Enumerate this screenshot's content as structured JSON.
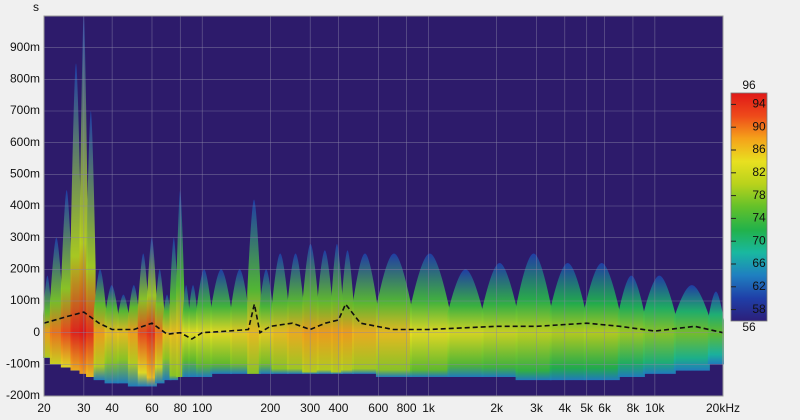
{
  "chart_data": {
    "type": "spectrogram",
    "y_label": "s",
    "xscale": "log",
    "xlim": [
      20,
      20000
    ],
    "xticks": [
      20,
      30,
      40,
      60,
      80,
      100,
      200,
      300,
      400,
      600,
      800,
      {
        "value": 1000,
        "label": "1k"
      },
      {
        "value": 2000,
        "label": "2k"
      },
      {
        "value": 3000,
        "label": "3k"
      },
      {
        "value": 4000,
        "label": "4k"
      },
      {
        "value": 5000,
        "label": "5k"
      },
      {
        "value": 6000,
        "label": "6k"
      },
      {
        "value": 8000,
        "label": "8k"
      },
      {
        "value": 10000,
        "label": "10k"
      },
      {
        "value": 20000,
        "label": "20kHz"
      }
    ],
    "ylim": [
      -0.2,
      1.0
    ],
    "yticks": [
      {
        "value": -0.2,
        "label": "-200m"
      },
      {
        "value": -0.1,
        "label": "-100m"
      },
      0,
      {
        "value": 0.1,
        "label": "100m"
      },
      {
        "value": 0.2,
        "label": "200m"
      },
      {
        "value": 0.3,
        "label": "300m"
      },
      {
        "value": 0.4,
        "label": "400m"
      },
      {
        "value": 0.5,
        "label": "500m"
      },
      {
        "value": 0.6,
        "label": "600m"
      },
      {
        "value": 0.7,
        "label": "700m"
      },
      {
        "value": 0.8,
        "label": "800m"
      },
      {
        "value": 0.9,
        "label": "900m"
      }
    ],
    "grid": true,
    "background": "#2d1b6b",
    "zlim": [
      56,
      96
    ],
    "zticks": [
      58,
      62,
      66,
      70,
      74,
      78,
      82,
      86,
      90,
      94
    ],
    "colorscale": [
      "#2c1f7a",
      "#1f3fa8",
      "#1f7fc0",
      "#19b8a0",
      "#22b24a",
      "#63c12a",
      "#b8d21c",
      "#e8e020",
      "#f5a21a",
      "#ee4a1a",
      "#e01818"
    ],
    "surface": {
      "x": [
        20,
        23,
        25,
        28,
        30,
        32,
        35,
        40,
        45,
        50,
        55,
        60,
        65,
        70,
        75,
        80,
        85,
        90,
        100,
        120,
        150,
        170,
        190,
        220,
        260,
        300,
        350,
        400,
        430,
        500,
        700,
        1000,
        1500,
        2000,
        3000,
        4000,
        6000,
        8000,
        10000,
        15000,
        20000
      ],
      "top": [
        0.18,
        0.3,
        0.45,
        0.85,
        1.0,
        0.7,
        0.2,
        0.15,
        0.12,
        0.15,
        0.25,
        0.3,
        0.2,
        0.12,
        0.3,
        0.45,
        0.15,
        0.15,
        0.2,
        0.2,
        0.2,
        0.42,
        0.2,
        0.25,
        0.25,
        0.28,
        0.26,
        0.28,
        0.26,
        0.25,
        0.25,
        0.25,
        0.2,
        0.22,
        0.25,
        0.22,
        0.22,
        0.18,
        0.18,
        0.15,
        0.13
      ],
      "bottom": [
        -0.08,
        -0.1,
        -0.11,
        -0.12,
        -0.13,
        -0.14,
        -0.15,
        -0.16,
        -0.16,
        -0.17,
        -0.17,
        -0.17,
        -0.16,
        -0.15,
        -0.15,
        -0.14,
        -0.14,
        -0.14,
        -0.14,
        -0.13,
        -0.13,
        -0.13,
        -0.13,
        -0.13,
        -0.13,
        -0.13,
        -0.13,
        -0.13,
        -0.13,
        -0.13,
        -0.14,
        -0.14,
        -0.14,
        -0.14,
        -0.15,
        -0.15,
        -0.15,
        -0.14,
        -0.13,
        -0.12,
        -0.1
      ],
      "level": [
        88,
        90,
        92,
        95,
        96,
        94,
        88,
        86,
        86,
        88,
        92,
        94,
        90,
        86,
        86,
        86,
        84,
        84,
        84,
        84,
        85,
        86,
        85,
        86,
        87,
        88,
        88,
        88,
        88,
        87,
        86,
        84,
        83,
        82,
        81,
        80,
        80,
        79,
        78,
        77,
        76
      ]
    },
    "x": [
      20,
      25,
      30,
      35,
      40,
      50,
      60,
      70,
      80,
      90,
      100,
      130,
      160,
      170,
      180,
      200,
      250,
      300,
      350,
      400,
      430,
      500,
      700,
      1000,
      2000,
      3000,
      5000,
      7000,
      10000,
      15000,
      20000
    ],
    "series": [
      {
        "color": "#111111",
        "values": [
          0.03,
          0.05,
          0.065,
          0.03,
          0.01,
          0.01,
          0.03,
          -0.005,
          0.0,
          -0.02,
          0.0,
          0.005,
          0.01,
          0.09,
          0.0,
          0.02,
          0.03,
          0.01,
          0.03,
          0.04,
          0.09,
          0.03,
          0.01,
          0.01,
          0.02,
          0.02,
          0.03,
          0.02,
          0.005,
          0.02,
          0.0
        ]
      }
    ]
  }
}
